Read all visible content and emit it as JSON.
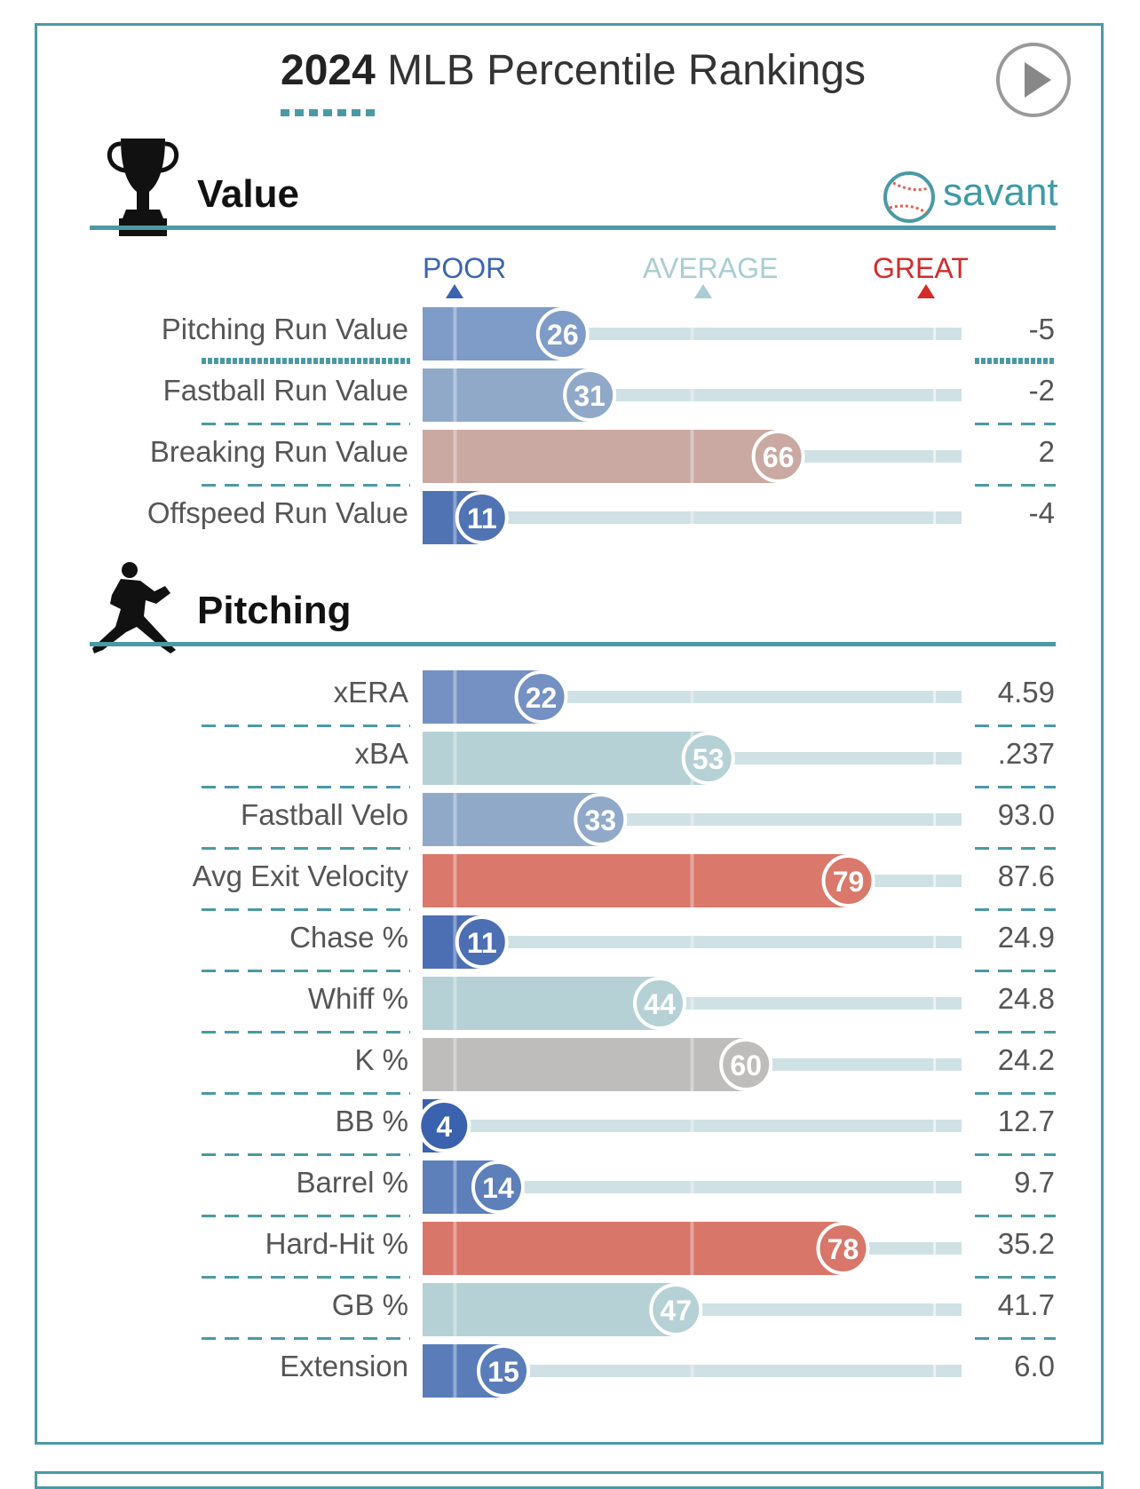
{
  "header": {
    "title_bold": "2024",
    "title_rest": " MLB Percentile Rankings"
  },
  "icons": {
    "play": "play-icon",
    "trophy": "trophy-icon",
    "pitcher": "pitcher-silhouette-icon",
    "savant_logo": "savant-baseball-logo"
  },
  "brand": {
    "name": "savant"
  },
  "scale": {
    "poor": "POOR",
    "average": "AVERAGE",
    "great": "GREAT"
  },
  "colors": {
    "accent": "#4a9aa5",
    "poor": "#3a5faa",
    "average": "#b5d1d5",
    "great": "#d86a5e",
    "track": "#cfe1e4",
    "scale_poor": "#3a64b0",
    "scale_average": "#a9cdd3",
    "scale_great": "#d42a2a"
  },
  "sections": [
    {
      "title": "Value"
    },
    {
      "title": "Pitching"
    }
  ],
  "chart_data": [
    {
      "type": "bar",
      "title": "Value",
      "categories": [
        "Pitching Run Value",
        "Fastball Run Value",
        "Breaking Run Value",
        "Offspeed Run Value"
      ],
      "percentiles": [
        26,
        31,
        66,
        11
      ],
      "values": [
        "-5",
        "-2",
        "2",
        "-4"
      ],
      "xlim": [
        0,
        100
      ],
      "bar_colors": [
        "#7f9bc7",
        "#90a9c9",
        "#c9a9a2",
        "#5073b4"
      ]
    },
    {
      "type": "bar",
      "title": "Pitching",
      "categories": [
        "xERA",
        "xBA",
        "Fastball Velo",
        "Avg Exit Velocity",
        "Chase %",
        "Whiff %",
        "K %",
        "BB %",
        "Barrel %",
        "Hard-Hit %",
        "GB %",
        "Extension"
      ],
      "percentiles": [
        22,
        53,
        33,
        79,
        11,
        44,
        60,
        4,
        14,
        78,
        47,
        15
      ],
      "values": [
        "4.59",
        ".237",
        "93.0",
        "87.6",
        "24.9",
        "24.8",
        "24.2",
        "12.7",
        "9.7",
        "35.2",
        "41.7",
        "6.0"
      ],
      "xlim": [
        0,
        100
      ],
      "bar_colors": [
        "#7590c2",
        "#b5d1d5",
        "#90a9c9",
        "#d9786b",
        "#4c6fb3",
        "#b5d1d5",
        "#bfbdbb",
        "#3a62ae",
        "#5d7fba",
        "#d8766a",
        "#b5d1d5",
        "#5a7dba"
      ]
    }
  ]
}
